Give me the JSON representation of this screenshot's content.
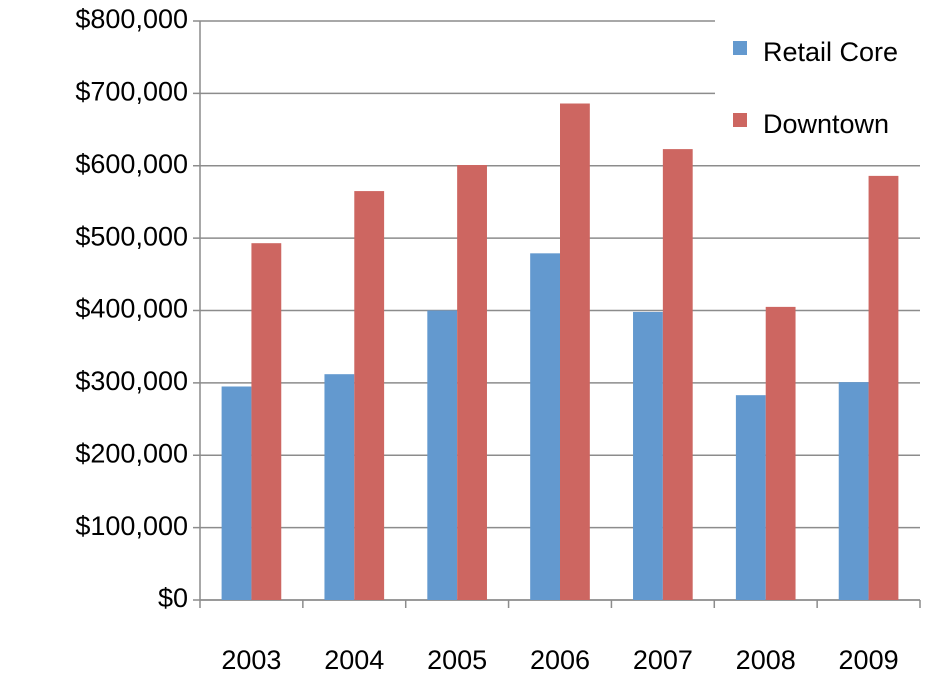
{
  "chart_data": {
    "type": "bar",
    "categories": [
      "2003",
      "2004",
      "2005",
      "2006",
      "2007",
      "2008",
      "2009"
    ],
    "series": [
      {
        "name": "Retail Core",
        "color": "#6399cf",
        "values": [
          295000,
          312000,
          400000,
          479000,
          398000,
          283000,
          301000
        ]
      },
      {
        "name": "Downtown",
        "color": "#cd6661",
        "values": [
          493000,
          565000,
          601000,
          686000,
          623000,
          405000,
          586000
        ]
      }
    ],
    "ylim": [
      0,
      800000
    ],
    "yticks": [
      {
        "value": 0,
        "label": "$0"
      },
      {
        "value": 100000,
        "label": "$100,000"
      },
      {
        "value": 200000,
        "label": "$200,000"
      },
      {
        "value": 300000,
        "label": "$300,000"
      },
      {
        "value": 400000,
        "label": "$400,000"
      },
      {
        "value": 500000,
        "label": "$500,000"
      },
      {
        "value": 600000,
        "label": "$600,000"
      },
      {
        "value": 700000,
        "label": "$700,000"
      },
      {
        "value": 800000,
        "label": "$800,000"
      }
    ],
    "grid": true,
    "legend": "top-right"
  }
}
